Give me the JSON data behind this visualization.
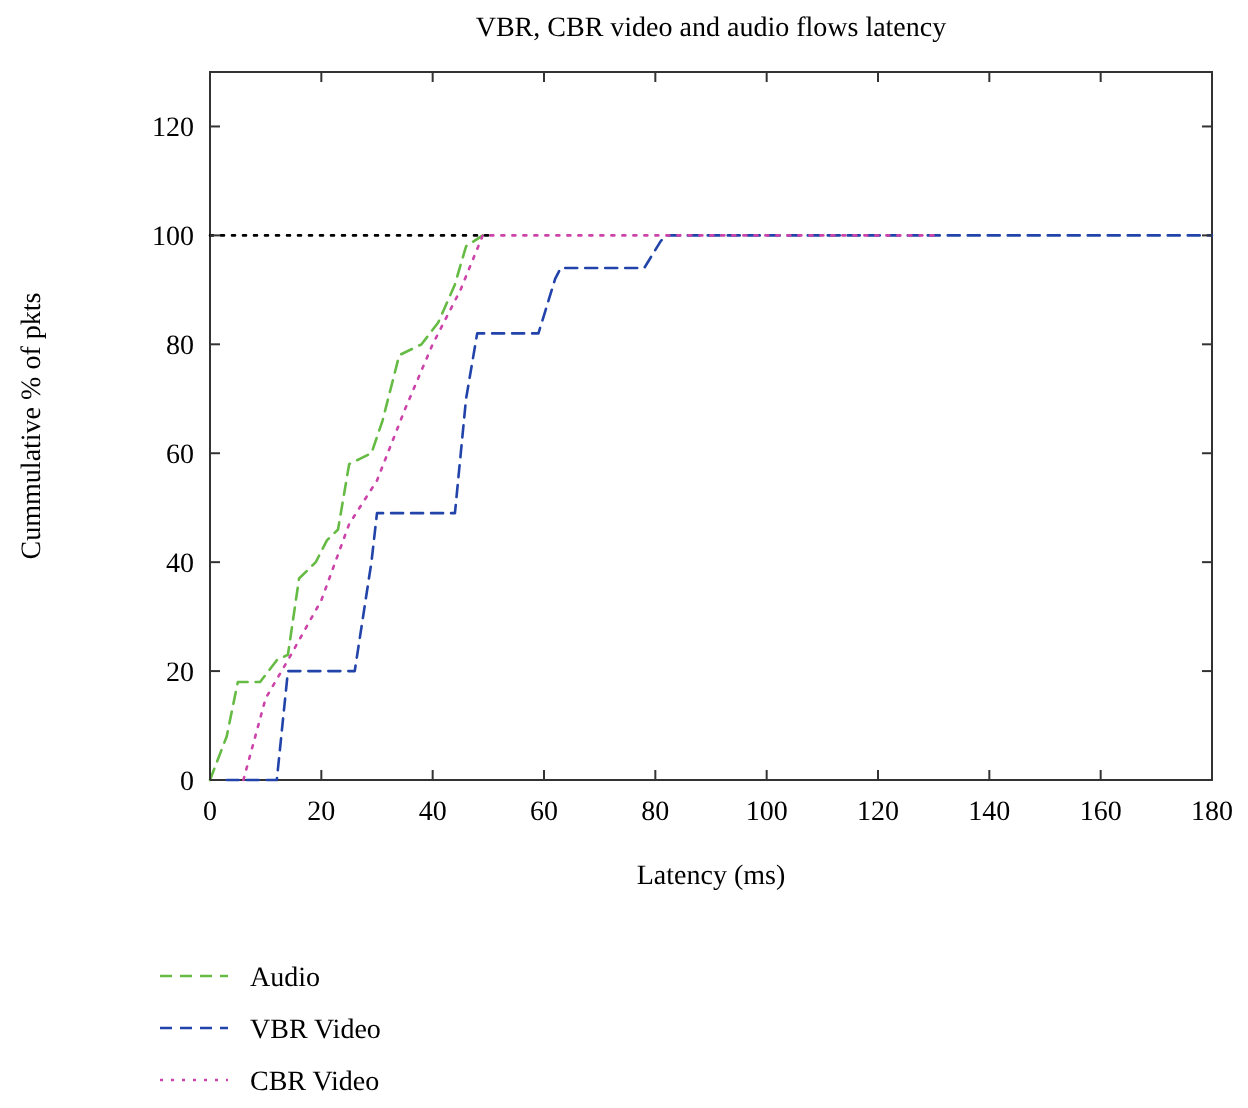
{
  "chart_data": {
    "type": "line",
    "title": "VBR, CBR video and audio flows latency",
    "xlabel": "Latency (ms)",
    "ylabel": "Cummulative % of pkts",
    "xlim": [
      0,
      180
    ],
    "xticks": [
      0,
      20,
      40,
      60,
      80,
      100,
      120,
      140,
      160,
      180
    ],
    "ylim": [
      0,
      130
    ],
    "yticks": [
      0,
      20,
      40,
      60,
      80,
      100,
      120
    ],
    "legend": "bottom left",
    "grid": false,
    "series": [
      {
        "name": "Audio",
        "color": "#66bb44",
        "line_style": "dashed",
        "x": [
          0,
          3,
          5,
          9,
          12,
          14,
          16,
          19,
          21,
          23,
          25,
          27,
          29,
          31,
          34,
          36,
          38,
          41,
          44,
          46,
          49
        ],
        "values": [
          0,
          8,
          18,
          18,
          22,
          23,
          37,
          40,
          44,
          46,
          58,
          59,
          60,
          66,
          78,
          79,
          80,
          84,
          91,
          98,
          100
        ]
      },
      {
        "name": "VBR Video",
        "color": "#2244aa",
        "line_style": "dashed",
        "x": [
          3,
          12,
          14,
          26,
          29,
          30,
          44,
          46,
          48,
          59,
          62,
          63,
          78,
          81,
          82,
          180
        ],
        "values": [
          0,
          0,
          20,
          20,
          40,
          49,
          49,
          70,
          82,
          82,
          92,
          94,
          94,
          99,
          100,
          100
        ]
      },
      {
        "name": "CBR Video",
        "color": "#cc44aa",
        "line_style": "dotted",
        "x": [
          6,
          10,
          14,
          20,
          25,
          30,
          35,
          40,
          45,
          49,
          130
        ],
        "values": [
          0,
          15,
          22,
          33,
          47,
          55,
          68,
          80,
          90,
          100,
          100
        ]
      },
      {
        "color": "#000000",
        "line_style": "dotted",
        "x": [
          0,
          50
        ],
        "values": [
          100,
          100
        ]
      }
    ]
  }
}
